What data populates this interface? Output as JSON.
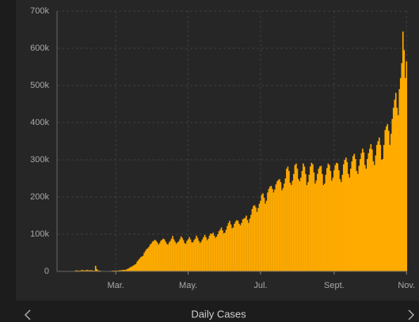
{
  "chart_data": {
    "type": "bar",
    "xlabel": "Daily Cases",
    "color": "#ffab00",
    "grid": true,
    "ylim": [
      0,
      700000
    ],
    "yticks": [
      0,
      {
        "value": 100000,
        "label": "100k"
      },
      {
        "value": 200000,
        "label": "200k"
      },
      {
        "value": 300000,
        "label": "300k"
      },
      {
        "value": 400000,
        "label": "400k"
      },
      {
        "value": 500000,
        "label": "500k"
      },
      {
        "value": 600000,
        "label": "600k"
      },
      {
        "value": 700000,
        "label": "700k"
      }
    ],
    "categories": [
      null,
      null,
      null,
      null,
      null,
      null,
      null,
      null,
      null,
      null,
      null,
      null,
      null,
      null,
      null,
      null,
      null,
      null,
      null,
      null,
      null,
      null,
      null,
      null,
      null,
      null,
      null,
      null,
      null,
      null,
      null,
      null,
      null,
      null,
      null,
      null,
      null,
      null,
      null,
      null,
      null,
      null,
      null,
      null,
      null,
      null,
      null,
      null,
      null,
      "Mar.",
      null,
      null,
      null,
      null,
      null,
      null,
      null,
      null,
      null,
      null,
      null,
      null,
      null,
      null,
      null,
      null,
      null,
      null,
      null,
      null,
      null,
      null,
      null,
      null,
      null,
      null,
      null,
      null,
      null,
      null,
      null,
      null,
      null,
      null,
      null,
      null,
      null,
      null,
      null,
      null,
      null,
      null,
      null,
      null,
      null,
      null,
      null,
      null,
      null,
      null,
      null,
      null,
      null,
      null,
      null,
      null,
      null,
      null,
      null,
      null,
      "May.",
      null,
      null,
      null,
      null,
      null,
      null,
      null,
      null,
      null,
      null,
      null,
      null,
      null,
      null,
      null,
      null,
      null,
      null,
      null,
      null,
      null,
      null,
      null,
      null,
      null,
      null,
      null,
      null,
      null,
      null,
      null,
      null,
      null,
      null,
      null,
      null,
      null,
      null,
      null,
      null,
      null,
      null,
      null,
      null,
      null,
      null,
      null,
      null,
      null,
      null,
      null,
      null,
      null,
      null,
      null,
      null,
      null,
      null,
      null,
      null,
      "Jul.",
      null,
      null,
      null,
      null,
      null,
      null,
      null,
      null,
      null,
      null,
      null,
      null,
      null,
      null,
      null,
      null,
      null,
      null,
      null,
      null,
      null,
      null,
      null,
      null,
      null,
      null,
      null,
      null,
      null,
      null,
      null,
      null,
      null,
      null,
      null,
      null,
      null,
      null,
      null,
      null,
      null,
      null,
      null,
      null,
      null,
      null,
      null,
      null,
      null,
      null,
      null,
      null,
      null,
      null,
      null,
      null,
      null,
      null,
      null,
      null,
      null,
      "Sept.",
      null,
      null,
      null,
      null,
      null,
      null,
      null,
      null,
      null,
      null,
      null,
      null,
      null,
      null,
      null,
      null,
      null,
      null,
      null,
      null,
      null,
      null,
      null,
      null,
      null,
      null,
      null,
      null,
      null,
      null,
      null,
      null,
      null,
      null,
      null,
      null,
      null,
      null,
      null,
      null,
      null,
      null,
      null,
      null,
      null,
      null,
      null,
      null,
      null,
      null,
      null,
      null,
      null,
      null,
      null,
      null,
      null,
      null,
      null,
      null,
      "Nov."
    ],
    "values": [
      0,
      0,
      0,
      0,
      0,
      0,
      0,
      0,
      0,
      0,
      0,
      0,
      1000,
      1000,
      1000,
      2000,
      3000,
      2000,
      2000,
      2000,
      3000,
      4000,
      2000,
      3000,
      3000,
      4000,
      3000,
      3000,
      3000,
      3000,
      2000,
      2000,
      15000,
      6000,
      3000,
      2000,
      2000,
      1000,
      1000,
      1000,
      1000,
      1000,
      1000,
      1000,
      1000,
      1000,
      2000,
      2000,
      2000,
      2000,
      2000,
      2000,
      3000,
      3000,
      3000,
      4000,
      4000,
      4000,
      5000,
      7000,
      8000,
      11000,
      12000,
      14000,
      16000,
      18000,
      20000,
      26000,
      30000,
      34000,
      38000,
      40000,
      42000,
      50000,
      55000,
      60000,
      62000,
      66000,
      72000,
      75000,
      80000,
      82000,
      85000,
      82000,
      78000,
      72000,
      76000,
      82000,
      85000,
      88000,
      86000,
      80000,
      74000,
      72000,
      78000,
      82000,
      88000,
      95000,
      86000,
      80000,
      74000,
      78000,
      80000,
      86000,
      94000,
      90000,
      84000,
      76000,
      74000,
      82000,
      86000,
      92000,
      86000,
      78000,
      78000,
      84000,
      88000,
      96000,
      90000,
      82000,
      76000,
      80000,
      86000,
      92000,
      98000,
      92000,
      84000,
      88000,
      96000,
      102000,
      100000,
      104000,
      96000,
      90000,
      94000,
      100000,
      108000,
      112000,
      118000,
      110000,
      102000,
      104000,
      112000,
      122000,
      130000,
      136000,
      126000,
      116000,
      118000,
      128000,
      134000,
      138000,
      136000,
      128000,
      124000,
      130000,
      140000,
      142000,
      144000,
      150000,
      138000,
      130000,
      142000,
      152000,
      168000,
      176000,
      178000,
      172000,
      160000,
      170000,
      182000,
      190000,
      206000,
      210000,
      198000,
      182000,
      190000,
      212000,
      222000,
      228000,
      230000,
      222000,
      212000,
      220000,
      234000,
      242000,
      246000,
      248000,
      240000,
      218000,
      224000,
      236000,
      250000,
      276000,
      282000,
      270000,
      238000,
      232000,
      244000,
      262000,
      286000,
      290000,
      276000,
      248000,
      242000,
      252000,
      270000,
      290000,
      282000,
      262000,
      232000,
      240000,
      260000,
      282000,
      292000,
      288000,
      266000,
      236000,
      244000,
      262000,
      276000,
      282000,
      284000,
      262000,
      232000,
      236000,
      260000,
      278000,
      290000,
      286000,
      270000,
      244000,
      252000,
      272000,
      286000,
      292000,
      290000,
      272000,
      248000,
      240000,
      260000,
      288000,
      300000,
      306000,
      294000,
      262000,
      252000,
      276000,
      296000,
      310000,
      316000,
      302000,
      270000,
      262000,
      284000,
      302000,
      318000,
      330000,
      320000,
      286000,
      276000,
      302000,
      318000,
      330000,
      342000,
      328000,
      296000,
      286000,
      312000,
      340000,
      350000,
      360000,
      340000,
      300000,
      302000,
      340000,
      380000,
      390000,
      396000,
      378000,
      340000,
      370000,
      410000,
      440000,
      462000,
      480000,
      440000,
      420000,
      490000,
      520000,
      560000,
      645000,
      595000,
      520000,
      565000
    ]
  }
}
